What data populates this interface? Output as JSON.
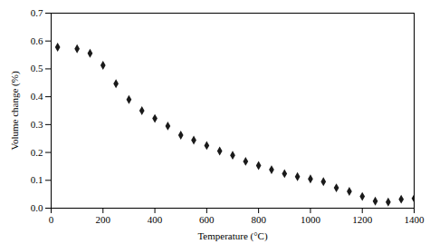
{
  "chart_data": {
    "type": "scatter",
    "x": [
      25,
      100,
      150,
      200,
      250,
      300,
      350,
      400,
      450,
      500,
      550,
      600,
      650,
      700,
      750,
      800,
      850,
      900,
      950,
      1000,
      1050,
      1100,
      1150,
      1200,
      1250,
      1300,
      1350,
      1400
    ],
    "values": [
      0.578,
      0.572,
      0.556,
      0.513,
      0.447,
      0.39,
      0.35,
      0.322,
      0.295,
      0.262,
      0.244,
      0.225,
      0.205,
      0.19,
      0.168,
      0.153,
      0.138,
      0.124,
      0.113,
      0.105,
      0.095,
      0.073,
      0.06,
      0.042,
      0.025,
      0.022,
      0.032,
      0.035
    ],
    "color": "#1a1a1a",
    "marker": "diamond",
    "xlabel": "Temperature (°C)",
    "ylabel": "Volume change (%)",
    "xlim": [
      0,
      1400
    ],
    "ylim": [
      0,
      0.7
    ],
    "xticks": [
      0,
      200,
      400,
      600,
      800,
      1000,
      1200,
      1400
    ],
    "yticks": [
      {
        "value": 0,
        "label": "0.0"
      },
      0.1,
      0.2,
      0.3,
      0.4,
      0.5,
      0.6,
      0.7
    ]
  }
}
